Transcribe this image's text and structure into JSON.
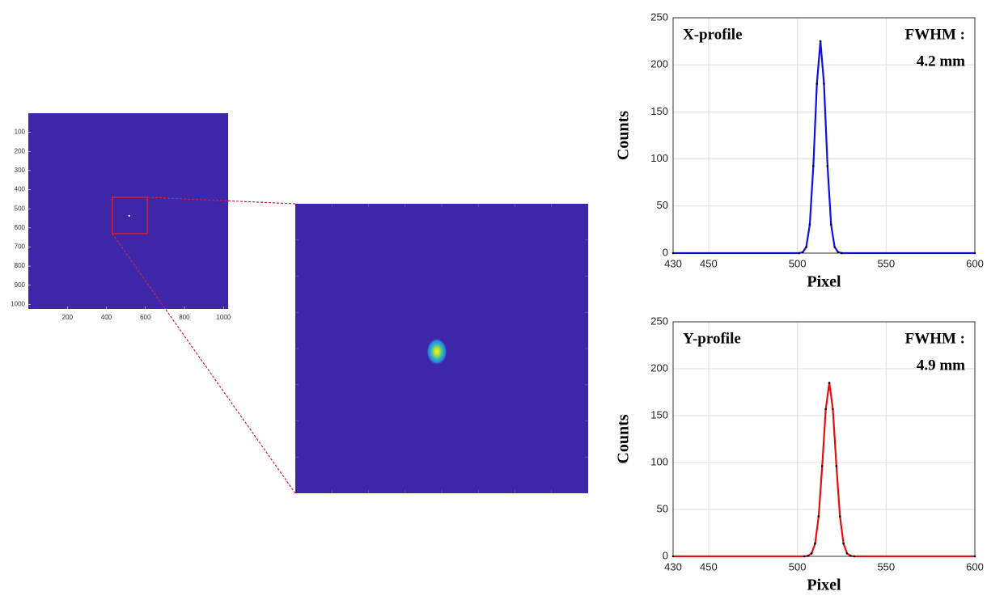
{
  "chart_data": [
    {
      "type": "image",
      "background": "#3d26a8",
      "xlim": [
        0,
        1024
      ],
      "ylim": [
        0,
        1024
      ],
      "y_reversed": true,
      "xticks": [
        200,
        400,
        600,
        800,
        1000
      ],
      "yticks": [
        100,
        200,
        300,
        400,
        500,
        600,
        700,
        800,
        900,
        1000
      ],
      "spot": {
        "x": 517,
        "y": 537
      },
      "zoom": {
        "x": [
          430,
          610
        ],
        "y": [
          440,
          630
        ]
      },
      "zoom_color": "#d0203a"
    },
    {
      "type": "line",
      "annotations": [
        "X-profile",
        "FWHM :",
        "4.2 mm"
      ],
      "xlabel": "Pixel",
      "ylabel": "Counts",
      "x": [
        430,
        501,
        503,
        505,
        507,
        509,
        511,
        513,
        515,
        517,
        519,
        521,
        523,
        525,
        600
      ],
      "values": [
        0,
        0,
        0.9,
        6.4,
        30.4,
        92.5,
        180,
        225,
        180,
        92.5,
        30.4,
        6.4,
        0.9,
        0,
        0
      ],
      "color": "#1010e0",
      "markers": true,
      "marker_color": "#000000",
      "xlim": [
        430,
        600
      ],
      "xticks": [
        430,
        450,
        500,
        550,
        600
      ],
      "ylim": [
        0,
        250
      ],
      "yticks": [
        0,
        50,
        100,
        150,
        200,
        250
      ],
      "grid": true
    },
    {
      "type": "line",
      "annotations": [
        "Y-profile",
        "FWHM :",
        "4.9 mm"
      ],
      "xlabel": "Pixel",
      "ylabel": "Counts",
      "x": [
        430,
        504,
        506,
        508,
        510,
        512,
        514,
        516,
        518,
        520,
        522,
        524,
        526,
        528,
        530,
        532,
        600
      ],
      "values": [
        0,
        0,
        0.5,
        3.1,
        13.6,
        42.6,
        96.3,
        157,
        185,
        157,
        96.3,
        42.6,
        13.6,
        3.1,
        0.5,
        0,
        0
      ],
      "color": "#e01010",
      "markers": true,
      "marker_color": "#000000",
      "xlim": [
        430,
        600
      ],
      "xticks": [
        430,
        450,
        500,
        550,
        600
      ],
      "ylim": [
        0,
        250
      ],
      "yticks": [
        0,
        50,
        100,
        150,
        200,
        250
      ],
      "grid": true
    }
  ]
}
